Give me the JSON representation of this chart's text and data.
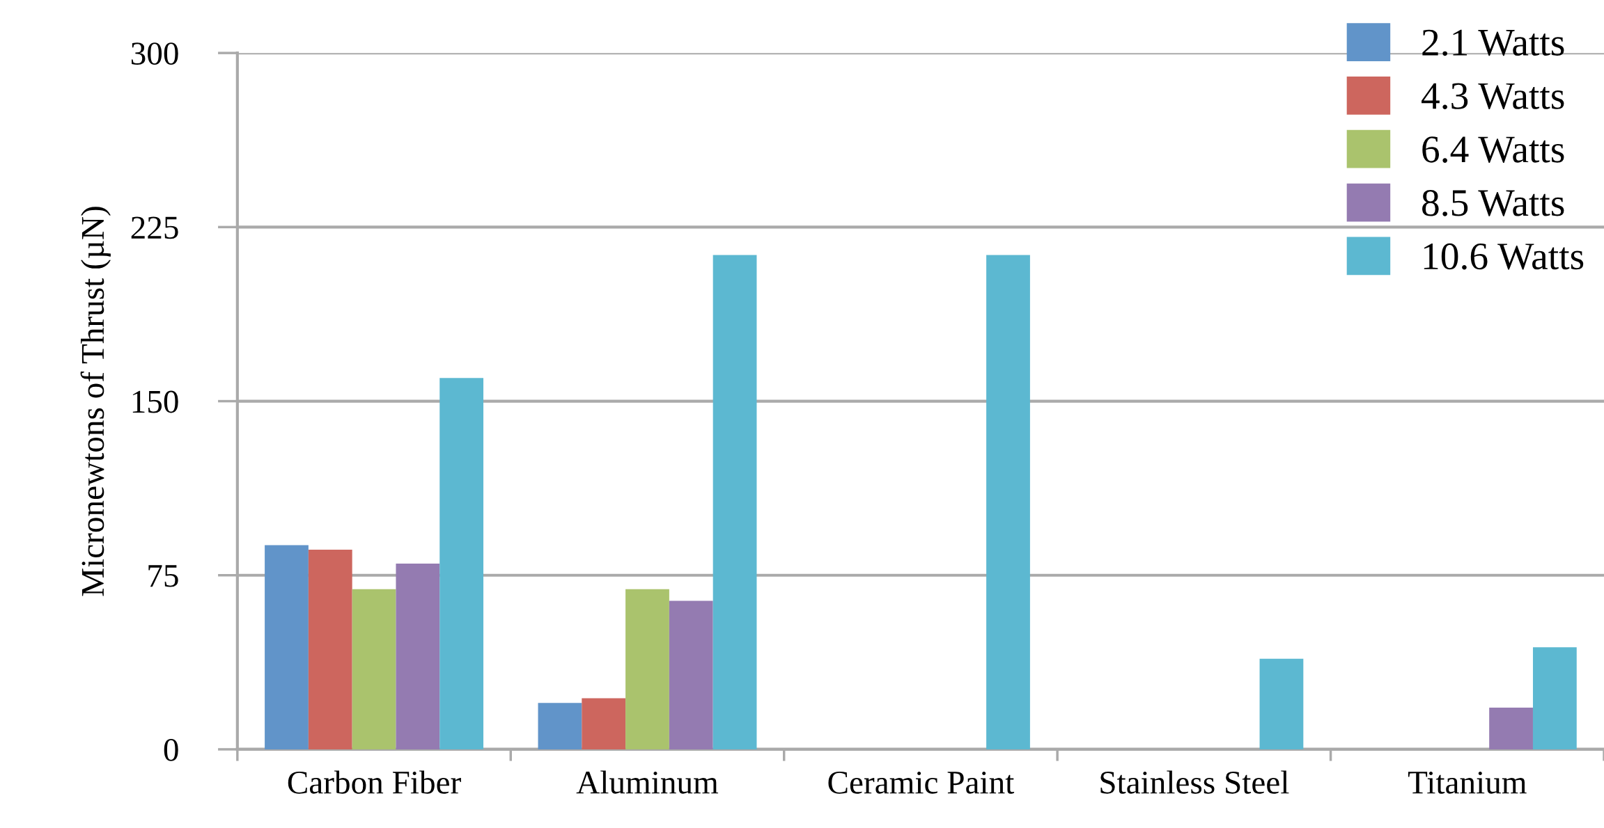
{
  "chart_data": {
    "type": "bar",
    "categories": [
      "Carbon Fiber",
      "Aluminum",
      "Ceramic Paint",
      "Stainless Steel",
      "Titanium"
    ],
    "ylabel": "Micronewtons of Thrust (µN)",
    "series": [
      {
        "name": "2.1 Watts",
        "color": "#6194c9",
        "values": [
          88,
          20,
          null,
          null,
          null
        ]
      },
      {
        "name": "4.3 Watts",
        "color": "#cd665e",
        "values": [
          86,
          22,
          null,
          null,
          null
        ]
      },
      {
        "name": "6.4 Watts",
        "color": "#aac36d",
        "values": [
          69,
          69,
          null,
          null,
          null
        ]
      },
      {
        "name": "8.5 Watts",
        "color": "#947bb1",
        "values": [
          80,
          64,
          null,
          null,
          18
        ]
      },
      {
        "name": "10.6 Watts",
        "color": "#5cb8d1",
        "values": [
          160,
          213,
          213,
          39,
          44
        ]
      }
    ],
    "ylim": [
      0,
      300
    ],
    "yticks": [
      0,
      75,
      150,
      225,
      300
    ],
    "grid": "y",
    "legend": "top right"
  }
}
